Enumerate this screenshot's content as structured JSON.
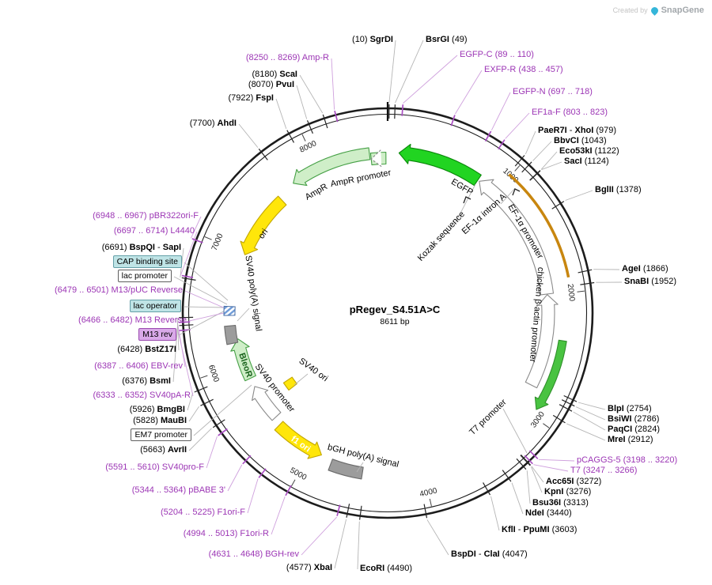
{
  "watermark": {
    "created_by": "Created by",
    "brand": "SnapGene"
  },
  "plasmid": {
    "name": "pRegev_S4.51A>C",
    "length": "8611 bp"
  },
  "scale_ticks": [
    {
      "label": "1000",
      "bp": 1000
    },
    {
      "label": "2000",
      "bp": 2000
    },
    {
      "label": "3000",
      "bp": 3000
    },
    {
      "label": "4000",
      "bp": 4000
    },
    {
      "label": "5000",
      "bp": 5000
    },
    {
      "label": "6000",
      "bp": 6000
    },
    {
      "label": "7000",
      "bp": 7000
    },
    {
      "label": "8000",
      "bp": 8000
    }
  ],
  "sites": [
    {
      "n": "sgrdi",
      "k": "e",
      "bp": 10,
      "parts": [
        {
          "t": "(10) "
        },
        {
          "t": "SgrDI",
          "b": true
        }
      ]
    },
    {
      "n": "bsrgi",
      "k": "e",
      "bp": 49,
      "parts": [
        {
          "t": "BsrGI",
          "b": true
        },
        {
          "t": " (49)"
        }
      ]
    },
    {
      "n": "amp-r-primer",
      "k": "p",
      "bp": 8260,
      "parts": [
        {
          "t": "(8250 .. 8269) Amp-R"
        }
      ]
    },
    {
      "n": "scai",
      "k": "e",
      "bp": 8180,
      "parts": [
        {
          "t": "(8180) "
        },
        {
          "t": "ScaI",
          "b": true
        }
      ]
    },
    {
      "n": "pvui",
      "k": "e",
      "bp": 8070,
      "parts": [
        {
          "t": "(8070) "
        },
        {
          "t": "PvuI",
          "b": true
        }
      ]
    },
    {
      "n": "fspi",
      "k": "e",
      "bp": 7922,
      "parts": [
        {
          "t": "(7922) "
        },
        {
          "t": "FspI",
          "b": true
        }
      ]
    },
    {
      "n": "ahdi",
      "k": "e",
      "bp": 7700,
      "parts": [
        {
          "t": "(7700) "
        },
        {
          "t": "AhdI",
          "b": true
        }
      ]
    },
    {
      "n": "egfp-c-primer",
      "k": "p",
      "bp": 100,
      "parts": [
        {
          "t": "EGFP-C (89 .. 110)"
        }
      ]
    },
    {
      "n": "exfp-r-primer",
      "k": "p",
      "bp": 448,
      "parts": [
        {
          "t": "EXFP-R (438 .. 457)"
        }
      ]
    },
    {
      "n": "egfp-n-primer",
      "k": "p",
      "bp": 708,
      "parts": [
        {
          "t": "EGFP-N (697 .. 718)"
        }
      ]
    },
    {
      "n": "ef1a-f-primer",
      "k": "p",
      "bp": 813,
      "parts": [
        {
          "t": "EF1a-F (803 .. 823)"
        }
      ]
    },
    {
      "n": "paer7i-xhoi",
      "k": "e",
      "bp": 979,
      "parts": [
        {
          "t": "PaeR7I",
          "b": true
        },
        {
          "t": " - "
        },
        {
          "t": "XhoI",
          "b": true
        },
        {
          "t": " (979)"
        }
      ]
    },
    {
      "n": "bbvci",
      "k": "e",
      "bp": 1043,
      "parts": [
        {
          "t": "BbvCI",
          "b": true
        },
        {
          "t": " (1043)"
        }
      ]
    },
    {
      "n": "eco53ki",
      "k": "e",
      "bp": 1122,
      "parts": [
        {
          "t": "Eco53kI",
          "b": true
        },
        {
          "t": " (1122)"
        }
      ]
    },
    {
      "n": "saci",
      "k": "e",
      "bp": 1124,
      "parts": [
        {
          "t": "SacI",
          "b": true
        },
        {
          "t": " (1124)"
        }
      ]
    },
    {
      "n": "bglii",
      "k": "e",
      "bp": 1378,
      "parts": [
        {
          "t": "BglII",
          "b": true
        },
        {
          "t": " (1378)"
        }
      ]
    },
    {
      "n": "agei",
      "k": "e",
      "bp": 1866,
      "parts": [
        {
          "t": "AgeI",
          "b": true
        },
        {
          "t": " (1866)"
        }
      ]
    },
    {
      "n": "snabi",
      "k": "e",
      "bp": 1952,
      "parts": [
        {
          "t": "SnaBI",
          "b": true
        },
        {
          "t": " (1952)"
        }
      ]
    },
    {
      "n": "blpi",
      "k": "e",
      "bp": 2754,
      "parts": [
        {
          "t": "BlpI",
          "b": true
        },
        {
          "t": " (2754)"
        }
      ]
    },
    {
      "n": "bsiwi",
      "k": "e",
      "bp": 2786,
      "parts": [
        {
          "t": "BsiWI",
          "b": true
        },
        {
          "t": " (2786)"
        }
      ]
    },
    {
      "n": "paqci",
      "k": "e",
      "bp": 2824,
      "parts": [
        {
          "t": "PaqCI",
          "b": true
        },
        {
          "t": " (2824)"
        }
      ]
    },
    {
      "n": "mrei",
      "k": "e",
      "bp": 2912,
      "parts": [
        {
          "t": "MreI",
          "b": true
        },
        {
          "t": " (2912)"
        }
      ]
    },
    {
      "n": "pcaggs-5-primer",
      "k": "p",
      "bp": 3209,
      "parts": [
        {
          "t": "pCAGGS-5 (3198 .. 3220)"
        }
      ]
    },
    {
      "n": "t7-primer",
      "k": "p",
      "bp": 3256,
      "parts": [
        {
          "t": "T7 (3247 .. 3266)"
        }
      ]
    },
    {
      "n": "acc65i",
      "k": "e",
      "bp": 3272,
      "parts": [
        {
          "t": "Acc65I",
          "b": true
        },
        {
          "t": " (3272)"
        }
      ]
    },
    {
      "n": "kpni",
      "k": "e",
      "bp": 3276,
      "parts": [
        {
          "t": "KpnI",
          "b": true
        },
        {
          "t": " (3276)"
        }
      ]
    },
    {
      "n": "bsu36i",
      "k": "e",
      "bp": 3313,
      "parts": [
        {
          "t": "Bsu36I",
          "b": true
        },
        {
          "t": " (3313)"
        }
      ]
    },
    {
      "n": "ndei",
      "k": "e",
      "bp": 3440,
      "parts": [
        {
          "t": "NdeI",
          "b": true
        },
        {
          "t": " (3440)"
        }
      ]
    },
    {
      "n": "kfli-ppumi",
      "k": "e",
      "bp": 3603,
      "parts": [
        {
          "t": "KflI",
          "b": true
        },
        {
          "t": " - "
        },
        {
          "t": "PpuMI",
          "b": true
        },
        {
          "t": " (3603)"
        }
      ]
    },
    {
      "n": "bspdi-clai",
      "k": "e",
      "bp": 4047,
      "parts": [
        {
          "t": "BspDI",
          "b": true
        },
        {
          "t": " - "
        },
        {
          "t": "ClaI",
          "b": true
        },
        {
          "t": " (4047)"
        }
      ]
    },
    {
      "n": "ecori",
      "k": "e",
      "bp": 4490,
      "parts": [
        {
          "t": "EcoRI",
          "b": true
        },
        {
          "t": " (4490)"
        }
      ]
    },
    {
      "n": "xbai",
      "k": "e",
      "bp": 4577,
      "parts": [
        {
          "t": "(4577) "
        },
        {
          "t": "XbaI",
          "b": true
        }
      ]
    },
    {
      "n": "bgh-rev-primer",
      "k": "p",
      "bp": 4640,
      "parts": [
        {
          "t": "(4631 .. 4648) BGH-rev"
        }
      ]
    },
    {
      "n": "f1ori-r-primer",
      "k": "p",
      "bp": 5004,
      "parts": [
        {
          "t": "(4994 .. 5013) F1ori-R"
        }
      ]
    },
    {
      "n": "f1ori-f-primer",
      "k": "p",
      "bp": 5215,
      "parts": [
        {
          "t": "(5204 .. 5225) F1ori-F"
        }
      ]
    },
    {
      "n": "pbabe-3-primer",
      "k": "p",
      "bp": 5354,
      "parts": [
        {
          "t": "(5344 .. 5364) pBABE 3'"
        }
      ]
    },
    {
      "n": "sv40pro-f-primer",
      "k": "p",
      "bp": 5600,
      "parts": [
        {
          "t": "(5591 .. 5610) SV40pro-F"
        }
      ]
    },
    {
      "n": "avrii",
      "k": "e",
      "bp": 5663,
      "parts": [
        {
          "t": "(5663) "
        },
        {
          "t": "AvrII",
          "b": true
        }
      ]
    },
    {
      "n": "em7-promoter-label",
      "k": "b",
      "c": "white",
      "bp": 5790,
      "parts": [
        {
          "t": "EM7 promoter"
        }
      ]
    },
    {
      "n": "maubi",
      "k": "e",
      "bp": 5828,
      "parts": [
        {
          "t": "(5828) "
        },
        {
          "t": "MauBI",
          "b": true
        }
      ]
    },
    {
      "n": "bmgbi",
      "k": "e",
      "bp": 5926,
      "parts": [
        {
          "t": "(5926) "
        },
        {
          "t": "BmgBI",
          "b": true
        }
      ]
    },
    {
      "n": "sv40pa-r-primer",
      "k": "p",
      "bp": 6343,
      "parts": [
        {
          "t": "(6333 .. 6352) SV40pA-R"
        }
      ]
    },
    {
      "n": "bsmi",
      "k": "e",
      "bp": 6376,
      "parts": [
        {
          "t": "(6376) "
        },
        {
          "t": "BsmI",
          "b": true
        }
      ]
    },
    {
      "n": "ebv-rev-primer",
      "k": "p",
      "bp": 6397,
      "parts": [
        {
          "t": "(6387 .. 6406) EBV-rev"
        }
      ]
    },
    {
      "n": "bstz17i",
      "k": "e",
      "bp": 6428,
      "parts": [
        {
          "t": "(6428) "
        },
        {
          "t": "BstZ17I",
          "b": true
        }
      ]
    },
    {
      "n": "m13-rev-label",
      "k": "b",
      "c": "purple",
      "bp": 6474,
      "parts": [
        {
          "t": "M13 rev"
        }
      ]
    },
    {
      "n": "m13-reverse-primer",
      "k": "p",
      "bp": 6474,
      "parts": [
        {
          "t": "(6466 .. 6482) M13 Reverse"
        }
      ]
    },
    {
      "n": "lac-operator-label",
      "k": "b",
      "c": "cyan",
      "bp": 6490,
      "parts": [
        {
          "t": "lac operator"
        }
      ]
    },
    {
      "n": "m13-puc-reverse-primer",
      "k": "p",
      "bp": 6490,
      "parts": [
        {
          "t": "(6479 .. 6501) M13/pUC Reverse"
        }
      ]
    },
    {
      "n": "lac-promoter-label",
      "k": "b",
      "c": "white",
      "bp": 6530,
      "parts": [
        {
          "t": "lac promoter"
        }
      ]
    },
    {
      "n": "cap-binding-site-label",
      "k": "b",
      "c": "cyan",
      "bp": 6570,
      "parts": [
        {
          "t": "CAP binding site"
        }
      ]
    },
    {
      "n": "bspqi-sapi",
      "k": "e",
      "bp": 6691,
      "parts": [
        {
          "t": "(6691) "
        },
        {
          "t": "BspQI",
          "b": true
        },
        {
          "t": " - "
        },
        {
          "t": "SapI",
          "b": true
        }
      ]
    },
    {
      "n": "l4440-primer",
      "k": "p",
      "bp": 6705,
      "parts": [
        {
          "t": "(6697 .. 6714) L4440"
        }
      ]
    },
    {
      "n": "pbr322ori-f-primer",
      "k": "p",
      "bp": 6957,
      "parts": [
        {
          "t": "(6948 .. 6967) pBR322ori-F"
        }
      ]
    }
  ],
  "features": [
    {
      "id": "egfp",
      "name": "EGFP"
    },
    {
      "id": "ef1a-promoter",
      "name": "EF-1α promoter"
    },
    {
      "id": "ef1a-intron-a",
      "name": "EF-1α intron A"
    },
    {
      "id": "kozak",
      "name": "Kozak sequence"
    },
    {
      "id": "chicken-b-actin",
      "name": "chicken β-actin promoter"
    },
    {
      "id": "t7-promoter",
      "name": "T7 promoter"
    },
    {
      "id": "bgh-polya",
      "name": "bGH poly(A) signal"
    },
    {
      "id": "f1-ori",
      "name": "f1 ori"
    },
    {
      "id": "sv40-promoter",
      "name": "SV40 promoter"
    },
    {
      "id": "sv40-ori",
      "name": "SV40 ori"
    },
    {
      "id": "bleor",
      "name": "BleoR"
    },
    {
      "id": "sv40-polya",
      "name": "SV40 poly(A) signal"
    },
    {
      "id": "ori",
      "name": "ori"
    },
    {
      "id": "ampr",
      "name": "AmpR"
    },
    {
      "id": "ampr-promoter",
      "name": "AmpR promoter"
    }
  ]
}
